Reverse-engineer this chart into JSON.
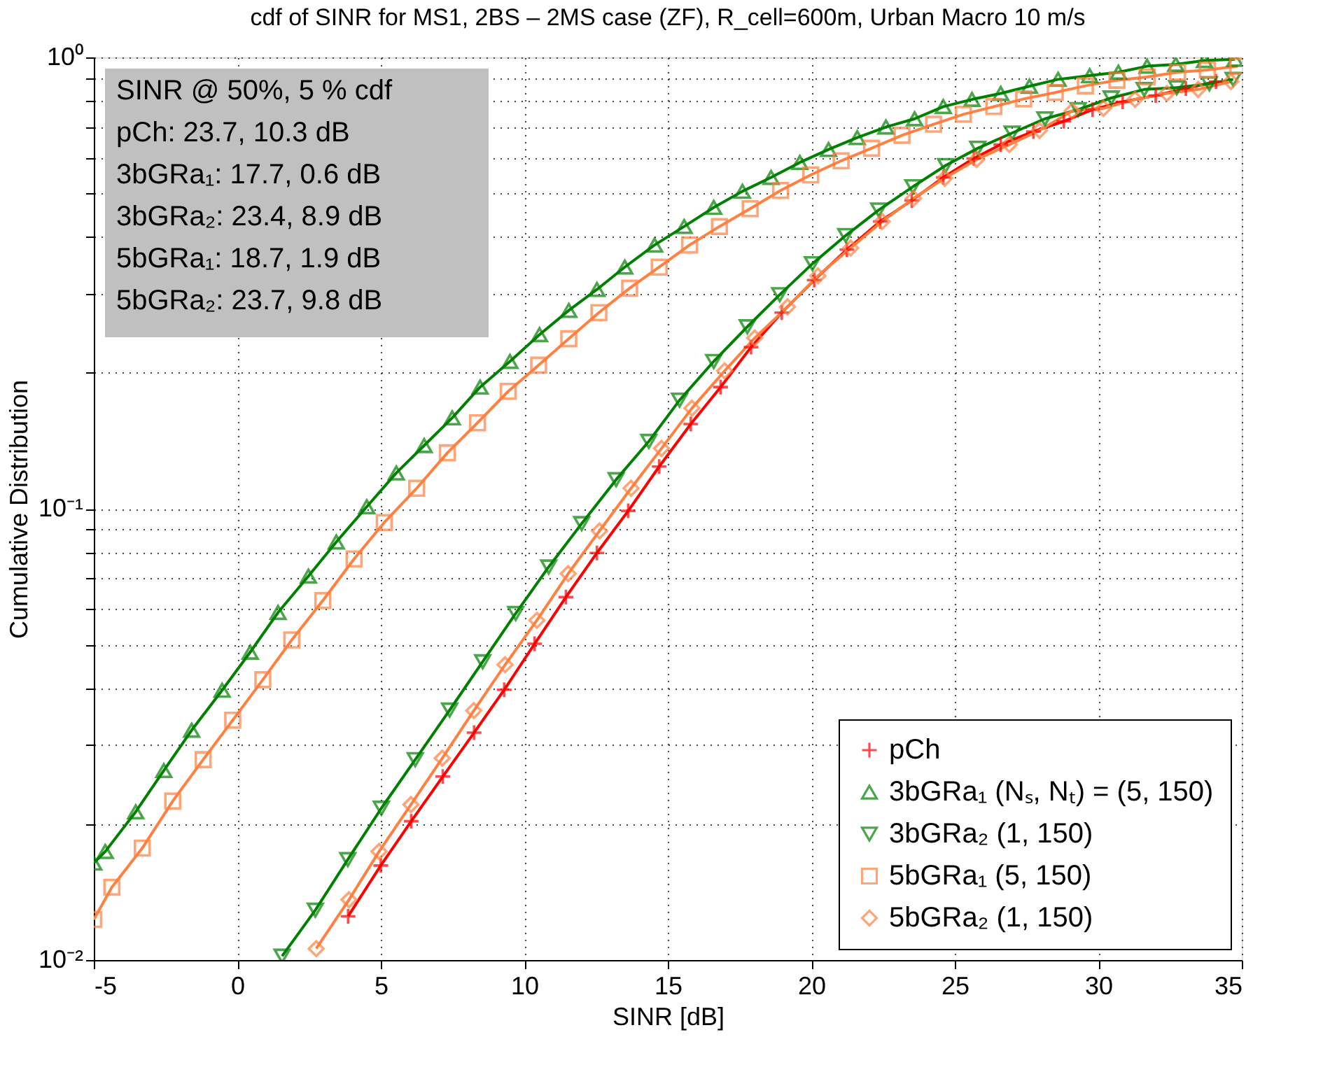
{
  "chart_data": {
    "type": "line",
    "title": "cdf of SINR for MS1, 2BS – 2MS case (ZF), R_cell=600m, Urban Macro 10 m/s",
    "xlabel": "SINR [dB]",
    "ylabel": "Cumulative Distribution",
    "xlim": [
      -5,
      35
    ],
    "xticks": [
      -5,
      0,
      5,
      10,
      15,
      20,
      25,
      30,
      35
    ],
    "ylim": [
      0.01,
      1
    ],
    "yticks": [
      {
        "value": 0.01,
        "label": "10⁻²"
      },
      {
        "value": 0.02,
        "label": null
      },
      {
        "value": 0.03,
        "label": null
      },
      {
        "value": 0.04,
        "label": null
      },
      {
        "value": 0.05,
        "label": null
      },
      {
        "value": 0.06,
        "label": null
      },
      {
        "value": 0.07,
        "label": null
      },
      {
        "value": 0.08,
        "label": null
      },
      {
        "value": 0.09,
        "label": null
      },
      {
        "value": 0.1,
        "label": "10⁻¹"
      },
      {
        "value": 0.2,
        "label": null
      },
      {
        "value": 0.3,
        "label": null
      },
      {
        "value": 0.4,
        "label": null
      },
      {
        "value": 0.5,
        "label": null
      },
      {
        "value": 0.6,
        "label": null
      },
      {
        "value": 0.7,
        "label": null
      },
      {
        "value": 0.8,
        "label": null
      },
      {
        "value": 0.9,
        "label": null
      },
      {
        "value": 1,
        "label": "10⁰"
      }
    ],
    "log": true,
    "grid": true,
    "legend": "bottom right",
    "line_style": "solid",
    "annotations": [
      "SINR @ 50%, 5 % cdf",
      "pCh: 23.7, 10.3 dB",
      "3bGRa₁: 17.7, 0.6 dB",
      "3bGRa₂: 23.4, 8.9 dB",
      "5bGRa₁: 18.7, 1.9 dB",
      "5bGRa₂: 23.7, 9.8 dB"
    ],
    "series": [
      {
        "name": "pCh",
        "color": "#ff0000",
        "marker": "cross",
        "x": [
          3.86,
          5.0,
          6.06,
          7.16,
          8.25,
          9.3,
          10.36,
          11.45,
          12.53,
          13.62,
          14.7,
          15.8,
          16.84,
          17.9,
          18.97,
          20.1,
          21.24,
          22.4,
          23.5,
          24.6,
          25.66,
          26.6,
          27.74,
          28.8,
          29.8,
          30.85,
          32.0,
          33.05,
          34.1
        ],
        "values": [
          0.0125,
          0.0162,
          0.0203,
          0.0255,
          0.0319,
          0.0397,
          0.0502,
          0.0637,
          0.0798,
          0.0989,
          0.124,
          0.154,
          0.186,
          0.228,
          0.272,
          0.321,
          0.375,
          0.433,
          0.482,
          0.542,
          0.597,
          0.641,
          0.685,
          0.722,
          0.766,
          0.797,
          0.823,
          0.853,
          0.884
        ]
      },
      {
        "name": "3bGRa₁ (Nₛ, Nₜ) = (5, 150)",
        "color": "#008000",
        "marker": "triangle",
        "x": [
          -5,
          -4.6,
          -3.54,
          -2.56,
          -1.59,
          -0.53,
          0.45,
          1.42,
          2.48,
          3.45,
          4.51,
          5.54,
          6.51,
          7.49,
          8.46,
          9.5,
          10.53,
          11.55,
          12.53,
          13.5,
          14.54,
          15.57,
          16.6,
          17.6,
          18.6,
          19.6,
          20.6,
          21.6,
          22.6,
          23.6,
          24.6,
          25.6,
          26.6,
          27.6,
          28.6,
          29.7,
          30.7,
          31.7,
          32.7,
          33.7,
          34.76
        ],
        "values": [
          0.0164,
          0.0174,
          0.0213,
          0.0263,
          0.0323,
          0.0396,
          0.0481,
          0.0589,
          0.0709,
          0.0844,
          0.101,
          0.12,
          0.138,
          0.159,
          0.186,
          0.212,
          0.243,
          0.275,
          0.306,
          0.343,
          0.384,
          0.422,
          0.465,
          0.505,
          0.542,
          0.585,
          0.625,
          0.664,
          0.701,
          0.731,
          0.778,
          0.807,
          0.832,
          0.863,
          0.894,
          0.911,
          0.927,
          0.956,
          0.965,
          0.984,
          0.99
        ]
      },
      {
        "name": "3bGRa₂ (1, 150)",
        "color": "#008000",
        "marker": "triangle-down",
        "x": [
          1.56,
          2.72,
          3.85,
          5.02,
          6.2,
          7.4,
          8.55,
          9.7,
          10.85,
          12.0,
          13.2,
          14.34,
          15.41,
          16.6,
          17.77,
          18.9,
          20.04,
          21.2,
          22.35,
          23.54,
          24.68,
          25.8,
          27.0,
          28.14,
          29.3,
          30.45,
          31.6,
          32.73,
          33.87,
          34.7
        ],
        "values": [
          0.0102,
          0.0129,
          0.0167,
          0.0217,
          0.0278,
          0.0358,
          0.0458,
          0.0586,
          0.0743,
          0.0927,
          0.116,
          0.141,
          0.174,
          0.212,
          0.253,
          0.298,
          0.349,
          0.403,
          0.459,
          0.517,
          0.576,
          0.629,
          0.68,
          0.731,
          0.766,
          0.813,
          0.849,
          0.857,
          0.874,
          0.894
        ]
      },
      {
        "name": "5bGRa₁ (5, 150)",
        "color": "#ff8040",
        "marker": "square",
        "x": [
          -5,
          -4.37,
          -3.31,
          -2.25,
          -1.19,
          -0.16,
          0.89,
          1.9,
          2.98,
          4.07,
          5.12,
          6.25,
          7.32,
          8.37,
          9.44,
          10.5,
          11.55,
          12.6,
          13.67,
          14.7,
          15.76,
          16.8,
          17.87,
          18.93,
          19.98,
          21.04,
          22.1,
          23.16,
          24.26,
          25.3,
          26.36,
          27.4,
          28.5,
          29.55,
          30.65,
          31.7,
          32.76,
          33.8,
          34.86
        ],
        "values": [
          0.0123,
          0.0145,
          0.0177,
          0.0225,
          0.0278,
          0.034,
          0.0418,
          0.0512,
          0.0626,
          0.0774,
          0.0932,
          0.111,
          0.133,
          0.155,
          0.182,
          0.208,
          0.238,
          0.272,
          0.308,
          0.343,
          0.384,
          0.422,
          0.462,
          0.507,
          0.549,
          0.59,
          0.629,
          0.672,
          0.711,
          0.748,
          0.778,
          0.809,
          0.836,
          0.865,
          0.89,
          0.905,
          0.927,
          0.938,
          0.956
        ]
      },
      {
        "name": "5bGRa₂ (1, 150)",
        "color": "#ff8040",
        "marker": "diamond",
        "x": [
          2.75,
          3.89,
          4.94,
          6.05,
          7.14,
          8.24,
          9.33,
          10.44,
          11.53,
          12.62,
          13.72,
          14.78,
          15.84,
          16.98,
          18.03,
          19.17,
          20.23,
          21.37,
          22.47,
          23.56,
          24.65,
          25.76,
          26.9,
          27.95,
          29.09,
          30.18,
          31.28,
          32.39,
          33.48,
          34.62
        ],
        "values": [
          0.0106,
          0.0136,
          0.0174,
          0.0221,
          0.028,
          0.0357,
          0.0451,
          0.0566,
          0.0718,
          0.0893,
          0.111,
          0.136,
          0.167,
          0.202,
          0.239,
          0.28,
          0.328,
          0.378,
          0.433,
          0.487,
          0.54,
          0.594,
          0.641,
          0.689,
          0.761,
          0.771,
          0.807,
          0.832,
          0.849,
          0.884
        ]
      }
    ]
  }
}
